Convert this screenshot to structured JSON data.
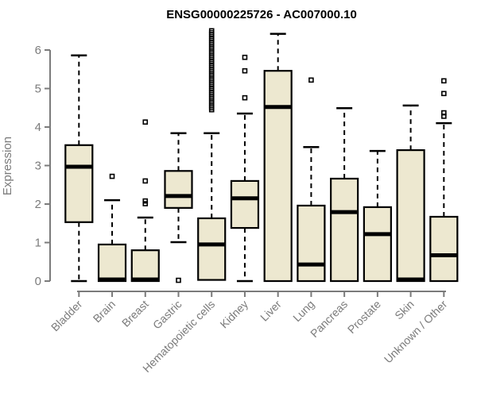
{
  "colors": {
    "background": "#ffffff",
    "box_fill": "#EDE8D0",
    "box_stroke": "#000000",
    "median": "#000000",
    "whisker": "#000000",
    "outlier": "#000000",
    "axis": "#7b7b7b",
    "tick_label": "#7b7b7b",
    "title": "#000000"
  },
  "chart_data": {
    "type": "boxplot",
    "title": "ENSG00000225726 - AC007000.10",
    "xlabel": "",
    "ylabel": "Expression",
    "ylim": [
      0,
      6.5
    ],
    "yticks": [
      0,
      1,
      2,
      3,
      4,
      5,
      6
    ],
    "grid": false,
    "legend": "none",
    "categories": [
      "Bladder",
      "Brain",
      "Breast",
      "Gastric",
      "Hematopoietic cells",
      "Kidney",
      "Liver",
      "Lung",
      "Pancreas",
      "Prostate",
      "Skin",
      "Unknown / Other"
    ],
    "boxes": [
      {
        "category": "Bladder",
        "whisker_low": 0,
        "q1": 1.53,
        "median": 2.97,
        "q3": 3.53,
        "whisker_high": 5.86,
        "outliers": []
      },
      {
        "category": "Brain",
        "whisker_low": 0,
        "q1": 0,
        "median": 0.04,
        "q3": 0.95,
        "whisker_high": 2.1,
        "outliers": [
          2.72
        ]
      },
      {
        "category": "Breast",
        "whisker_low": 0,
        "q1": 0,
        "median": 0.04,
        "q3": 0.8,
        "whisker_high": 1.65,
        "outliers": [
          4.13,
          2.6,
          2.08,
          2.01
        ]
      },
      {
        "category": "Gastric",
        "whisker_low": 1.01,
        "q1": 1.9,
        "median": 2.21,
        "q3": 2.86,
        "whisker_high": 3.84,
        "outliers": [
          0.02
        ]
      },
      {
        "category": "Hematopoietic cells",
        "whisker_low": 0.03,
        "q1": 0.03,
        "median": 0.95,
        "q3": 1.63,
        "whisker_high": 3.84,
        "outliers": [
          4.45,
          4.5,
          4.55,
          4.6,
          4.65,
          4.7,
          4.75,
          4.8,
          4.85,
          4.9,
          4.95,
          5.0,
          5.05,
          5.1,
          5.15,
          5.2,
          5.25,
          5.3,
          5.35,
          5.4,
          5.45,
          5.5,
          5.55,
          5.6,
          5.65,
          5.7,
          5.75,
          5.8,
          5.85,
          5.9,
          5.95,
          6.0,
          6.05,
          6.1,
          6.15,
          6.2,
          6.25,
          6.3,
          6.35,
          6.4,
          6.45,
          6.5
        ]
      },
      {
        "category": "Kidney",
        "whisker_low": 0,
        "q1": 1.38,
        "median": 2.15,
        "q3": 2.6,
        "whisker_high": 4.35,
        "outliers": [
          5.81,
          5.46,
          4.76
        ]
      },
      {
        "category": "Liver",
        "whisker_low": 0,
        "q1": 0,
        "median": 4.52,
        "q3": 5.46,
        "whisker_high": 6.42,
        "outliers": []
      },
      {
        "category": "Lung",
        "whisker_low": 0,
        "q1": 0,
        "median": 0.43,
        "q3": 1.96,
        "whisker_high": 3.48,
        "outliers": [
          5.22
        ]
      },
      {
        "category": "Pancreas",
        "whisker_low": 0,
        "q1": 0,
        "median": 1.79,
        "q3": 2.66,
        "whisker_high": 4.49,
        "outliers": []
      },
      {
        "category": "Prostate",
        "whisker_low": 0,
        "q1": 0,
        "median": 1.22,
        "q3": 1.92,
        "whisker_high": 3.38,
        "outliers": []
      },
      {
        "category": "Skin",
        "whisker_low": 0,
        "q1": 0,
        "median": 0.04,
        "q3": 3.4,
        "whisker_high": 4.56,
        "outliers": []
      },
      {
        "category": "Unknown / Other",
        "whisker_low": 0,
        "q1": 0,
        "median": 0.67,
        "q3": 1.67,
        "whisker_high": 4.1,
        "outliers": [
          5.2,
          4.87,
          4.37,
          4.28
        ]
      }
    ]
  }
}
